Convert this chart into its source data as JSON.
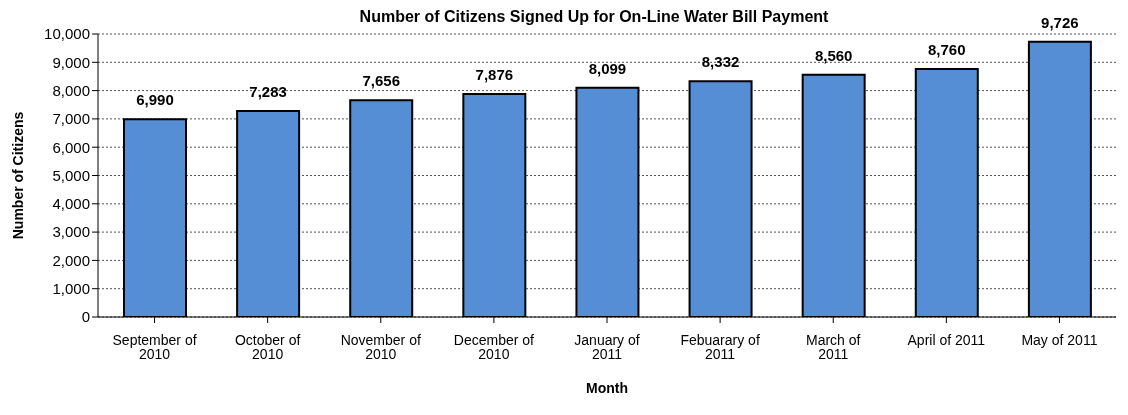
{
  "chart_data": {
    "type": "bar",
    "title": "Number of Citizens Signed Up for On-Line Water Bill Payment",
    "xlabel": "Month",
    "ylabel": "Number of Citizens",
    "categories": [
      "September of 2010",
      "October of 2010",
      "November of 2010",
      "December of 2010",
      "January of 2011",
      "Febuarary of 2011",
      "March of 2011",
      "April of 2011",
      "May of 2011"
    ],
    "values": [
      6990,
      7283,
      7656,
      7876,
      8099,
      8332,
      8560,
      8760,
      9726
    ],
    "value_labels": [
      "6,990",
      "7,283",
      "7,656",
      "7,876",
      "8,099",
      "8,332",
      "8,560",
      "8,760",
      "9,726"
    ],
    "color": "#558ed5",
    "ylim": [
      0,
      10000
    ],
    "yticks": [
      0,
      {
        "value": 1000,
        "label": "1,000"
      },
      {
        "value": 2000,
        "label": "2,000"
      },
      {
        "value": 3000,
        "label": "3,000"
      },
      {
        "value": 4000,
        "label": "4,000"
      },
      {
        "value": 5000,
        "label": "5,000"
      },
      {
        "value": 6000,
        "label": "6,000"
      },
      {
        "value": 7000,
        "label": "7,000"
      },
      {
        "value": 8000,
        "label": "8,000"
      },
      {
        "value": 9000,
        "label": "9,000"
      },
      {
        "value": 10000,
        "label": "10,000"
      }
    ],
    "grid": "y"
  }
}
